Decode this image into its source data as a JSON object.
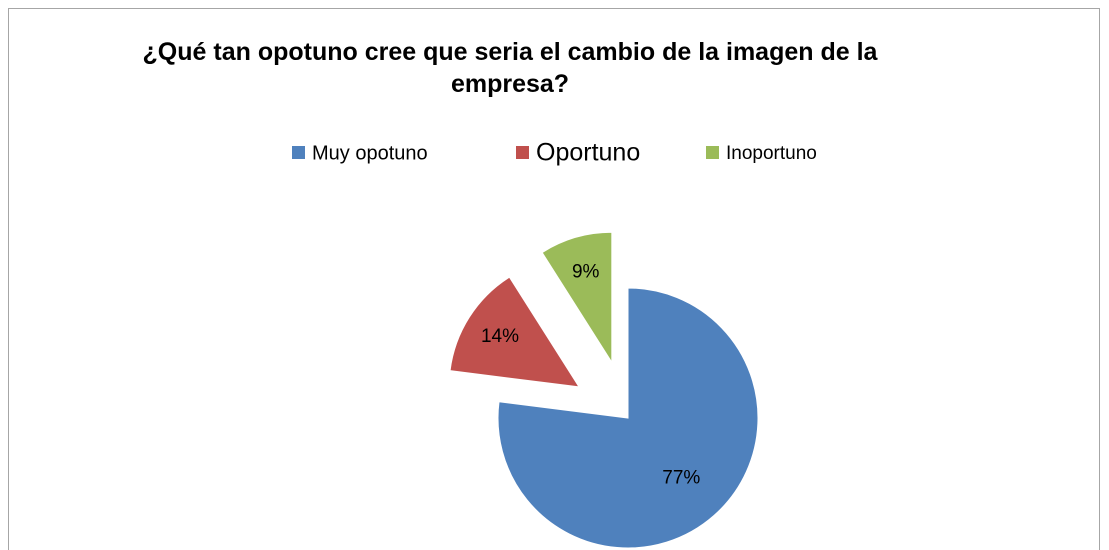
{
  "chart_data": {
    "type": "pie",
    "title": "¿Qué tan opotuno cree que seria el cambio de la imagen de la empresa?",
    "categories": [
      "Muy opotuno",
      "Oportuno",
      "Inoportuno"
    ],
    "values": [
      77,
      14,
      9
    ],
    "value_labels": [
      "77%",
      "14%",
      "9%"
    ],
    "colors": [
      "#4f81bd",
      "#c0504d",
      "#9bbb59"
    ],
    "legend": "top"
  }
}
